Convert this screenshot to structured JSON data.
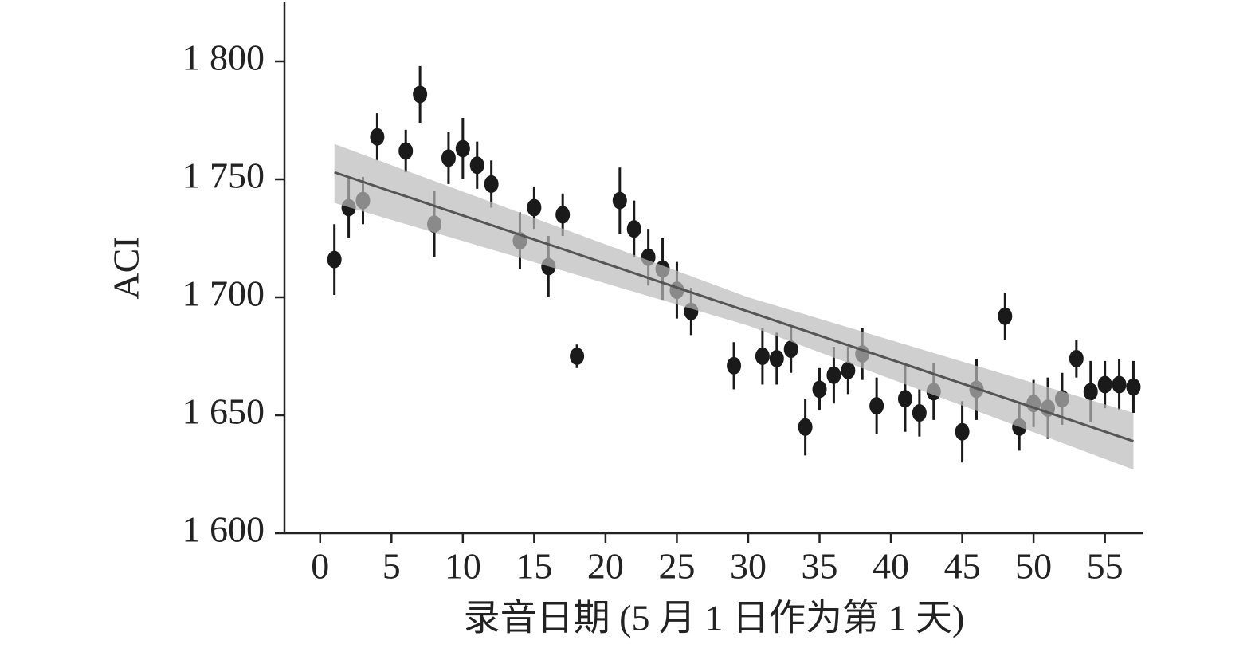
{
  "chart_data": {
    "type": "scatter",
    "x_label": "录音日期 (5 月 1 日作为第 1 天)",
    "y_label": "ACI",
    "x": [
      1,
      2,
      3,
      4,
      6,
      7,
      8,
      9,
      10,
      11,
      12,
      14,
      15,
      16,
      17,
      18,
      21,
      22,
      23,
      24,
      25,
      26,
      29,
      31,
      32,
      33,
      34,
      35,
      36,
      37,
      38,
      39,
      41,
      42,
      43,
      45,
      46,
      48,
      49,
      50,
      51,
      52,
      53,
      54,
      55,
      56,
      57
    ],
    "values": [
      1716,
      1738,
      1741,
      1768,
      1762,
      1786,
      1731,
      1759,
      1763,
      1756,
      1748,
      1724,
      1738,
      1713,
      1735,
      1675,
      1741,
      1729,
      1717,
      1712,
      1703,
      1694,
      1671,
      1675,
      1674,
      1678,
      1645,
      1661,
      1667,
      1669,
      1676,
      1654,
      1657,
      1651,
      1660,
      1643,
      1661,
      1692,
      1645,
      1655,
      1653,
      1657,
      1674,
      1660,
      1663,
      1663,
      1662
    ],
    "errors": [
      15,
      13,
      10,
      10,
      9,
      12,
      14,
      11,
      13,
      10,
      10,
      12,
      9,
      13,
      9,
      5,
      14,
      12,
      12,
      13,
      12,
      10,
      10,
      12,
      11,
      10,
      12,
      9,
      12,
      10,
      11,
      12,
      14,
      10,
      12,
      13,
      13,
      10,
      10,
      10,
      13,
      11,
      8,
      13,
      10,
      11,
      11
    ],
    "color": "#1a1a1a",
    "fit": {
      "x": [
        1,
        57
      ],
      "y": [
        1753,
        1639
      ],
      "color": "#555555"
    },
    "band": {
      "x": [
        1,
        30,
        57
      ],
      "lower": [
        1740,
        1688,
        1627
      ],
      "upper": [
        1765,
        1700,
        1651
      ],
      "color": "#bbbbbb"
    },
    "xlim": [
      -2.5,
      57.7
    ],
    "ylim": [
      1600,
      1825
    ],
    "xticks": [
      0,
      5,
      10,
      15,
      20,
      25,
      30,
      35,
      40,
      45,
      50,
      55
    ],
    "yticks": [
      {
        "value": 1600,
        "label": "1 600"
      },
      {
        "value": 1650,
        "label": "1 650"
      },
      {
        "value": 1700,
        "label": "1 700"
      },
      {
        "value": 1750,
        "label": "1 750"
      },
      {
        "value": 1800,
        "label": "1 800"
      }
    ],
    "grid": false
  }
}
